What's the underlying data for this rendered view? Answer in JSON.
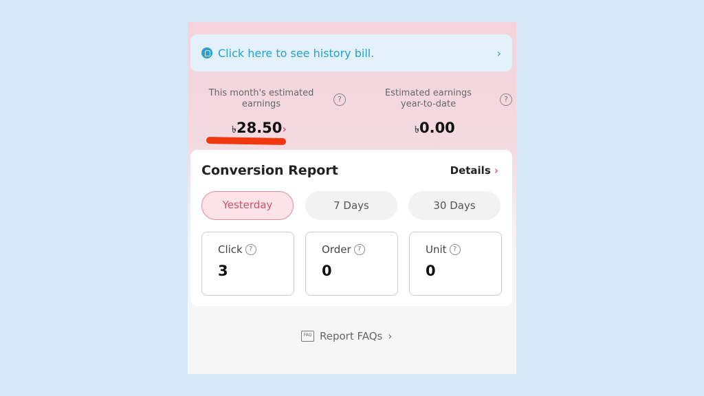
{
  "history": {
    "text": "Click here to see history bill.",
    "chevron": "›"
  },
  "earnings": {
    "month": {
      "label": "This month's estimated earnings",
      "currency": "৳",
      "amount": "28.50",
      "chevron": "›"
    },
    "ytd": {
      "label": "Estimated earnings year-to-date",
      "currency": "৳",
      "amount": "0.00"
    },
    "help": "?"
  },
  "report": {
    "title": "Conversion Report",
    "details": "Details",
    "details_chevron": "›",
    "tabs": [
      {
        "label": "Yesterday",
        "active": true
      },
      {
        "label": "7 Days"
      },
      {
        "label": "30 Days"
      }
    ],
    "stats": [
      {
        "label": "Click",
        "value": "3"
      },
      {
        "label": "Order",
        "value": "0"
      },
      {
        "label": "Unit",
        "value": "0"
      }
    ]
  },
  "faq": {
    "icon_text": "FAQ",
    "label": "Report FAQs",
    "chevron": "›"
  },
  "colors": {
    "accent": "#e2446a",
    "link": "#2a9fd0",
    "underline": "#f0380e"
  }
}
